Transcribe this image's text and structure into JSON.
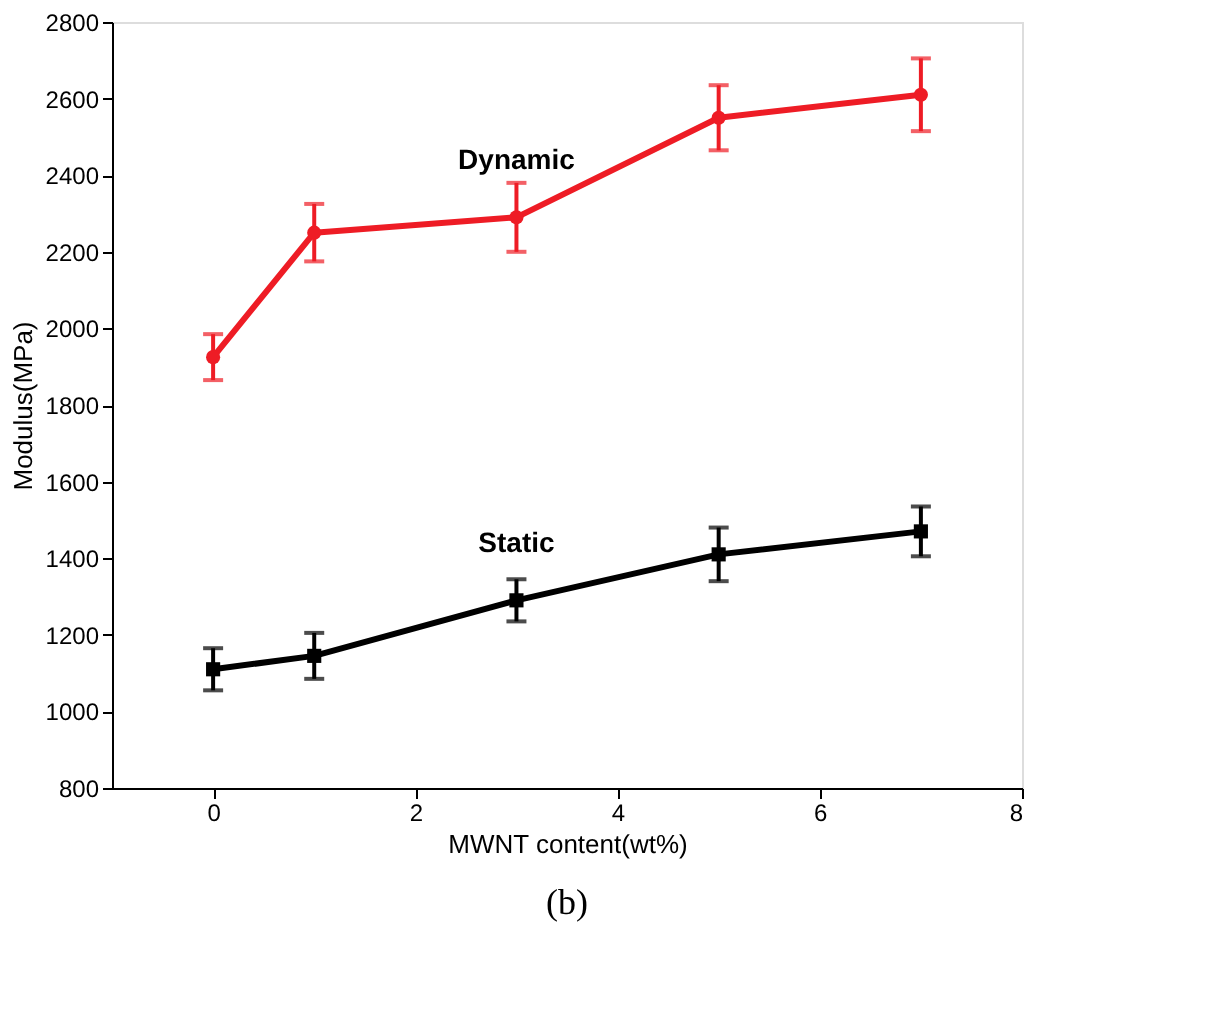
{
  "chart_data": {
    "type": "line",
    "xlabel": "MWNT content(wt%)",
    "ylabel": "Modulus(MPa)",
    "x": [
      0,
      1,
      3,
      5,
      7
    ],
    "series": [
      {
        "name": "Dynamic",
        "color": "#ee1c25",
        "marker": "circle",
        "values": [
          1925,
          2250,
          2290,
          2550,
          2610
        ],
        "errors": [
          60,
          75,
          90,
          85,
          95
        ]
      },
      {
        "name": "Static",
        "color": "#000000",
        "marker": "square",
        "values": [
          1110,
          1145,
          1290,
          1410,
          1470
        ],
        "errors": [
          55,
          60,
          55,
          70,
          65
        ]
      }
    ],
    "xlim": [
      -1,
      8
    ],
    "xticks": [
      0,
      2,
      4,
      6,
      8
    ],
    "ylim": [
      800,
      2800
    ],
    "yticks": [
      800,
      1000,
      1200,
      1400,
      1600,
      1800,
      2000,
      2200,
      2400,
      2600,
      2800
    ],
    "grid": false,
    "legend": false,
    "line_style": "solid",
    "annotations": [
      "(b)"
    ]
  }
}
